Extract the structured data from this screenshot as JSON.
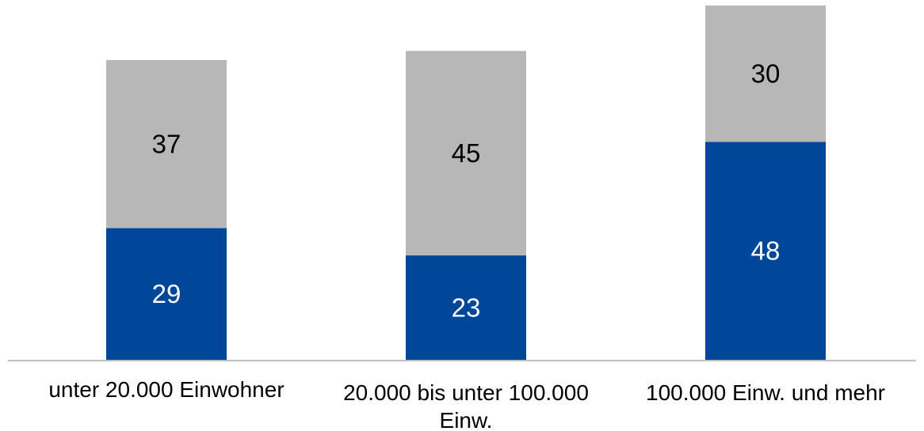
{
  "chart_data": {
    "type": "bar",
    "stacked": true,
    "categories": [
      "unter 20.000 Einwohner",
      "20.000 bis unter 100.000 Einw.",
      "100.000 Einw. und mehr"
    ],
    "category_lines": [
      [
        "unter 20.000 Einwohner"
      ],
      [
        "20.000 bis unter 100.000",
        "Einw."
      ],
      [
        "100.000 Einw. und mehr"
      ]
    ],
    "series": [
      {
        "values": [
          29,
          23,
          48
        ],
        "color": "#00479a",
        "label_color": "#ffffff"
      },
      {
        "values": [
          37,
          45,
          30
        ],
        "color": "#b7b7b7",
        "label_color": "#000000"
      }
    ],
    "title": "",
    "xlabel": "",
    "ylabel": "",
    "ylim": [
      0,
      78
    ],
    "grid": false,
    "legend": "none",
    "axis_color": "#bfbfbf"
  }
}
